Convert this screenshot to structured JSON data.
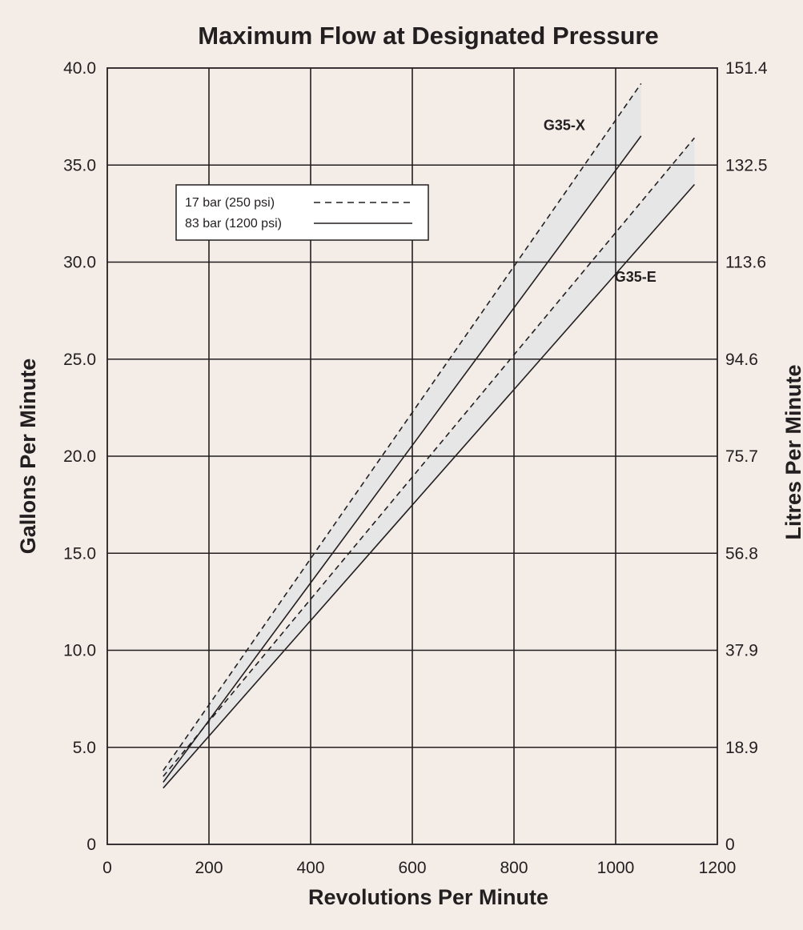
{
  "chart_data": {
    "type": "line",
    "title": "Maximum Flow at Designated Pressure",
    "xlabel": "Revolutions Per Minute",
    "ylabel": "Gallons Per Minute",
    "ylabel_right": "Litres Per Minute",
    "xlim": [
      0,
      1200
    ],
    "ylim": [
      0,
      40
    ],
    "grid": true,
    "x_ticks": [
      "0",
      "200",
      "400",
      "600",
      "800",
      "1000",
      "1200"
    ],
    "y_ticks": [
      "0",
      "5.0",
      "10.0",
      "15.0",
      "20.0",
      "25.0",
      "30.0",
      "35.0",
      "40.0"
    ],
    "y_ticks_right": [
      "0",
      "18.9",
      "37.9",
      "56.8",
      "75.7",
      "94.6",
      "113.6",
      "132.5",
      "151.4"
    ],
    "legend": {
      "placement": "top-left",
      "entries": [
        {
          "label": "17 bar (250 psi)",
          "style": "dashed"
        },
        {
          "label": "83 bar (1200 psi)",
          "style": "solid"
        }
      ]
    },
    "band_fill_color": "#e6e6e6",
    "line_color": "#231f20",
    "groups": [
      {
        "name": "G35-X",
        "label_at": [
          940,
          36.8
        ],
        "series": [
          {
            "pressure": "17 bar (250 psi)",
            "style": "dashed",
            "x": [
              110,
              1050
            ],
            "y": [
              3.8,
              39.2
            ]
          },
          {
            "pressure": "83 bar (1200 psi)",
            "style": "solid",
            "x": [
              110,
              1050
            ],
            "y": [
              3.2,
              36.5
            ]
          }
        ]
      },
      {
        "name": "G35-E",
        "label_at": [
          1080,
          29.0
        ],
        "series": [
          {
            "pressure": "17 bar (250 psi)",
            "style": "dashed",
            "x": [
              110,
              1155
            ],
            "y": [
              3.5,
              36.4
            ]
          },
          {
            "pressure": "83 bar (1200 psi)",
            "style": "solid",
            "x": [
              110,
              1155
            ],
            "y": [
              2.9,
              34.0
            ]
          }
        ]
      }
    ]
  }
}
